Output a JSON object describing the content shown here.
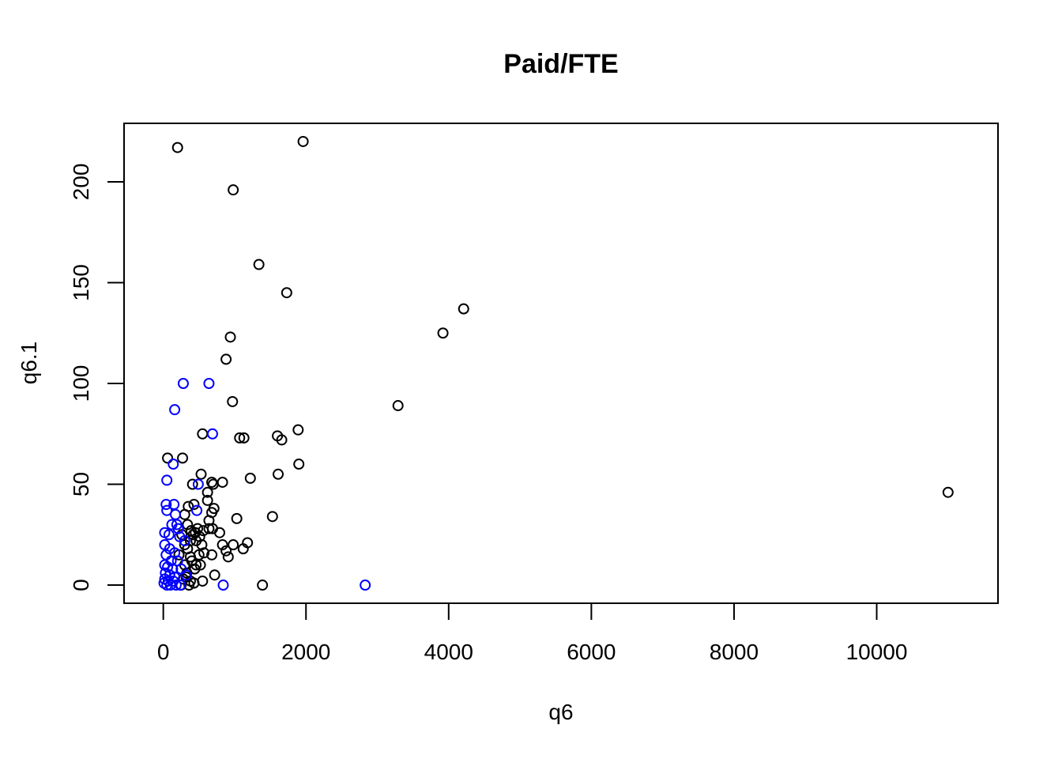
{
  "chart_data": {
    "type": "scatter",
    "title": "Paid/FTE",
    "xlabel": "q6",
    "ylabel": "q6.1",
    "xlim": [
      -550,
      11700
    ],
    "ylim": [
      -9,
      229
    ],
    "x_ticks": [
      0,
      2000,
      4000,
      6000,
      8000,
      10000
    ],
    "y_ticks": [
      0,
      50,
      100,
      150,
      200
    ],
    "grid": false,
    "legend": "none",
    "colors": {
      "black_series": "#000000",
      "blue_series": "#0000ff"
    },
    "series": [
      {
        "color": "#000000",
        "points": [
          [
            200,
            217
          ],
          [
            1960,
            220
          ],
          [
            980,
            196
          ],
          [
            1340,
            159
          ],
          [
            1730,
            145
          ],
          [
            940,
            123
          ],
          [
            880,
            112
          ],
          [
            970,
            91
          ],
          [
            3290,
            89
          ],
          [
            3920,
            125
          ],
          [
            4210,
            137
          ],
          [
            11000,
            46
          ],
          [
            550,
            75
          ],
          [
            1070,
            73
          ],
          [
            1130,
            73
          ],
          [
            1600,
            74
          ],
          [
            1660,
            72
          ],
          [
            1890,
            77
          ],
          [
            60,
            63
          ],
          [
            270,
            63
          ],
          [
            1610,
            55
          ],
          [
            1900,
            60
          ],
          [
            1220,
            53
          ],
          [
            830,
            51
          ],
          [
            680,
            51
          ],
          [
            700,
            50
          ],
          [
            530,
            55
          ],
          [
            410,
            50
          ],
          [
            620,
            46
          ],
          [
            620,
            42
          ],
          [
            430,
            40
          ],
          [
            350,
            39
          ],
          [
            710,
            38
          ],
          [
            680,
            36
          ],
          [
            1530,
            34
          ],
          [
            1030,
            33
          ],
          [
            640,
            32
          ],
          [
            480,
            28
          ],
          [
            560,
            27
          ],
          [
            640,
            28
          ],
          [
            690,
            28
          ],
          [
            790,
            26
          ],
          [
            420,
            25
          ],
          [
            380,
            22
          ],
          [
            460,
            22
          ],
          [
            540,
            20
          ],
          [
            830,
            20
          ],
          [
            980,
            20
          ],
          [
            1180,
            21
          ],
          [
            1120,
            18
          ],
          [
            880,
            17
          ],
          [
            910,
            14
          ],
          [
            570,
            16
          ],
          [
            500,
            15
          ],
          [
            680,
            15
          ],
          [
            400,
            12
          ],
          [
            460,
            10
          ],
          [
            520,
            10
          ],
          [
            440,
            8
          ],
          [
            720,
            5
          ],
          [
            550,
            2
          ],
          [
            430,
            1
          ],
          [
            360,
            0
          ],
          [
            1390,
            0
          ],
          [
            300,
            35
          ],
          [
            340,
            30
          ],
          [
            390,
            27
          ],
          [
            450,
            26
          ],
          [
            510,
            24
          ],
          [
            300,
            20
          ],
          [
            340,
            18
          ],
          [
            380,
            14
          ],
          [
            300,
            10
          ],
          [
            330,
            6
          ],
          [
            280,
            3
          ],
          [
            250,
            0
          ],
          [
            220,
            15
          ],
          [
            260,
            25
          ],
          [
            320,
            4
          ],
          [
            380,
            2
          ]
        ]
      },
      {
        "color": "#0000ff",
        "points": [
          [
            280,
            100
          ],
          [
            640,
            100
          ],
          [
            160,
            87
          ],
          [
            690,
            75
          ],
          [
            140,
            60
          ],
          [
            50,
            52
          ],
          [
            490,
            50
          ],
          [
            40,
            40
          ],
          [
            150,
            40
          ],
          [
            470,
            37
          ],
          [
            50,
            37
          ],
          [
            170,
            35
          ],
          [
            120,
            30
          ],
          [
            190,
            30
          ],
          [
            210,
            28
          ],
          [
            20,
            26
          ],
          [
            80,
            25
          ],
          [
            230,
            24
          ],
          [
            300,
            22
          ],
          [
            20,
            20
          ],
          [
            90,
            18
          ],
          [
            160,
            16
          ],
          [
            40,
            15
          ],
          [
            110,
            12
          ],
          [
            200,
            12
          ],
          [
            20,
            10
          ],
          [
            60,
            9
          ],
          [
            130,
            8
          ],
          [
            250,
            8
          ],
          [
            30,
            6
          ],
          [
            90,
            5
          ],
          [
            160,
            4
          ],
          [
            320,
            5
          ],
          [
            20,
            3
          ],
          [
            70,
            2
          ],
          [
            140,
            2
          ],
          [
            10,
            1
          ],
          [
            50,
            0
          ],
          [
            100,
            0
          ],
          [
            180,
            0
          ],
          [
            240,
            0
          ],
          [
            840,
            0
          ],
          [
            2830,
            0
          ]
        ]
      }
    ]
  }
}
